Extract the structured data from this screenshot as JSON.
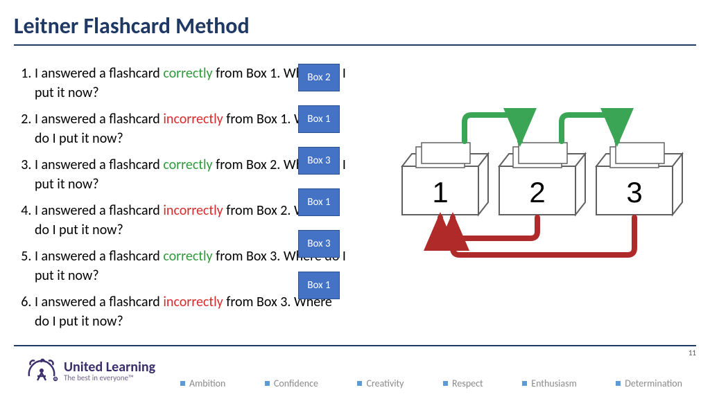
{
  "colors": {
    "title": "#1f3864",
    "rule": "#1f3864",
    "correct": "#2e9b3a",
    "incorrect": "#d62c2c",
    "ansFill": "#4472c4",
    "ansBorder": "#2f528f",
    "boxStroke": "#606060",
    "boxFill": "#ffffff",
    "arrowGreen": "#3aa655",
    "arrowRed": "#b02a2a",
    "logoMain": "#3b2e6b",
    "logoSub": "#6f6289",
    "valueText": "#8a8a8a",
    "valueSq": "#5b9bd5"
  },
  "title": "Leitner Flashcard Method",
  "questions": [
    {
      "pre": "I answered a flashcard ",
      "hl": "correctly",
      "kind": "correct",
      "post": " from Box 1. Where do I put it now?",
      "ans": "Box 2"
    },
    {
      "pre": "I answered a flashcard ",
      "hl": "incorrectly",
      "kind": "incorrect",
      "post": " from Box 1. Where do I put it now?",
      "ans": "Box 1"
    },
    {
      "pre": "I answered a flashcard ",
      "hl": "correctly",
      "kind": "correct",
      "post": " from Box 2. Where do I put it now?",
      "ans": "Box 3"
    },
    {
      "pre": "I answered a flashcard ",
      "hl": "incorrectly",
      "kind": "incorrect",
      "post": " from Box 2. Where do I put it now?",
      "ans": "Box 1"
    },
    {
      "pre": "I answered a flashcard ",
      "hl": "correctly",
      "kind": "correct",
      "post": " from Box 3. Where do I put it now?",
      "ans": "Box 3"
    },
    {
      "pre": "I answered a flashcard ",
      "hl": "incorrectly",
      "kind": "incorrect",
      "post": " from Box 3. Where do I put it now?",
      "ans": "Box 1"
    }
  ],
  "diagram": {
    "boxLabels": [
      "1",
      "2",
      "3"
    ]
  },
  "footer": {
    "logoMain": "United Learning",
    "logoSub": "The best in everyone™",
    "values": [
      "Ambition",
      "Confidence",
      "Creativity",
      "Respect",
      "Enthusiasm",
      "Determination"
    ]
  },
  "pageNumber": "11"
}
